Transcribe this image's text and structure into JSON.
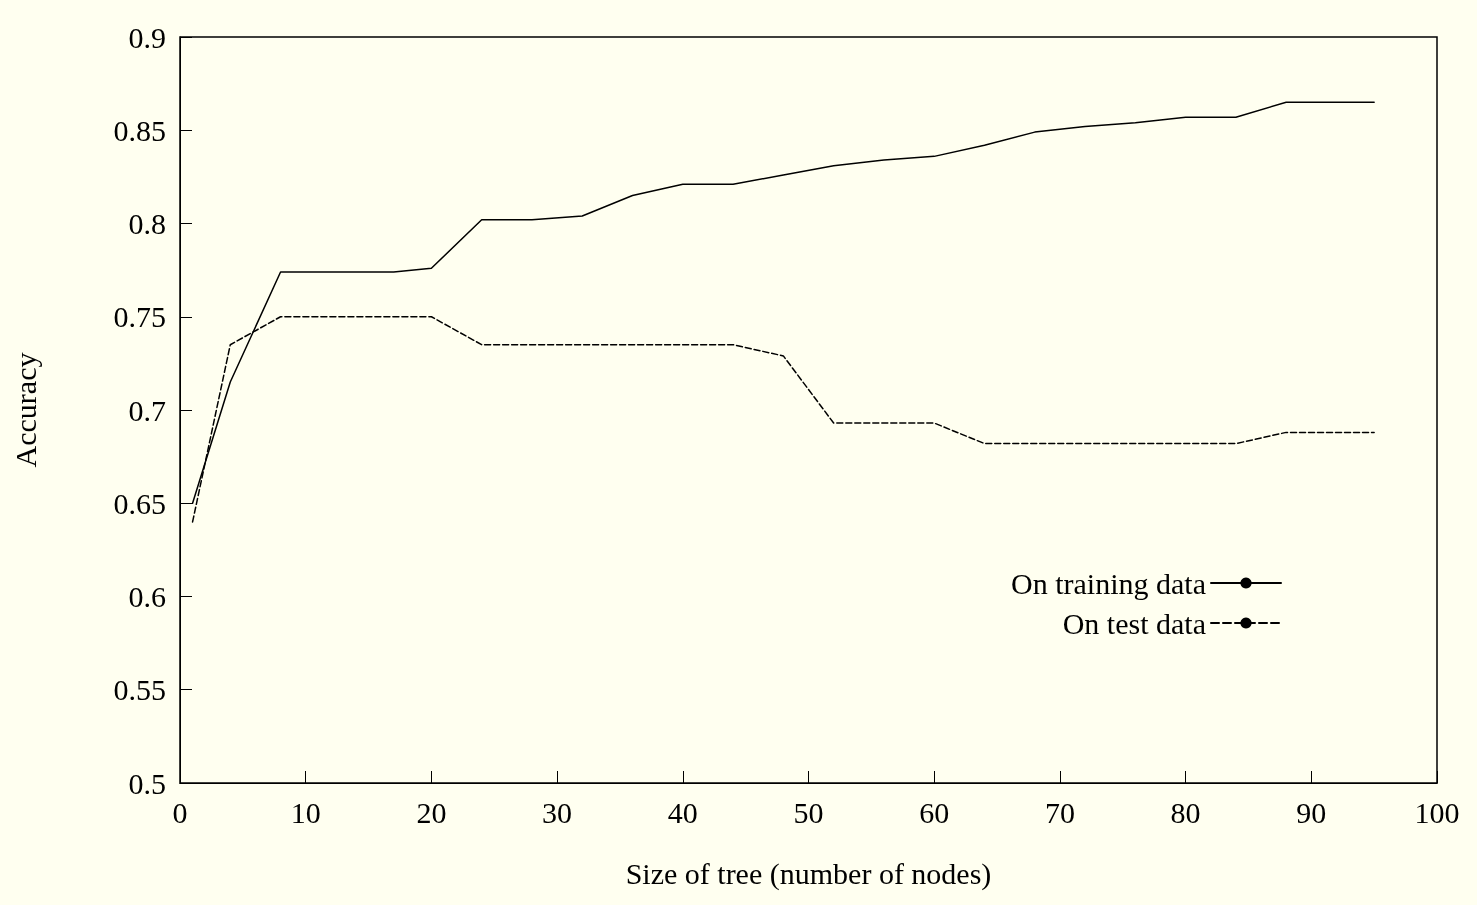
{
  "chart_data": {
    "type": "line",
    "xlabel": "Size of tree (number of nodes)",
    "ylabel": "Accuracy",
    "xlim": [
      0,
      100
    ],
    "xticks": [
      0,
      10,
      20,
      30,
      40,
      50,
      60,
      70,
      80,
      90,
      100
    ],
    "ylim": [
      0.5,
      0.9
    ],
    "yticks": [
      0.5,
      0.55,
      0.6,
      0.65,
      0.7,
      0.75,
      0.8,
      0.85,
      0.9
    ],
    "grid": false,
    "legend": "bottom right",
    "marker": "none",
    "series": [
      {
        "name": "On training data",
        "color": "#000000",
        "line_style": "solid",
        "x": [
          1,
          4,
          8,
          12,
          17,
          20,
          24,
          28,
          32,
          36,
          40,
          44,
          48,
          52,
          56,
          60,
          64,
          68,
          72,
          76,
          80,
          84,
          88,
          95
        ],
        "values": [
          0.65,
          0.715,
          0.774,
          0.774,
          0.774,
          0.776,
          0.802,
          0.802,
          0.804,
          0.815,
          0.821,
          0.821,
          0.826,
          0.831,
          0.834,
          0.836,
          0.842,
          0.849,
          0.852,
          0.854,
          0.857,
          0.857,
          0.865,
          0.865
        ]
      },
      {
        "name": "On test data",
        "color": "#000000",
        "line_style": "dashed",
        "x": [
          1,
          4,
          8,
          12,
          16,
          20,
          24,
          28,
          32,
          36,
          40,
          44,
          48,
          52,
          56,
          60,
          64,
          68,
          72,
          76,
          80,
          84,
          88,
          95
        ],
        "values": [
          0.64,
          0.735,
          0.75,
          0.75,
          0.75,
          0.75,
          0.735,
          0.735,
          0.735,
          0.735,
          0.735,
          0.735,
          0.729,
          0.693,
          0.693,
          0.693,
          0.682,
          0.682,
          0.682,
          0.682,
          0.682,
          0.682,
          0.688,
          0.688
        ]
      }
    ]
  }
}
